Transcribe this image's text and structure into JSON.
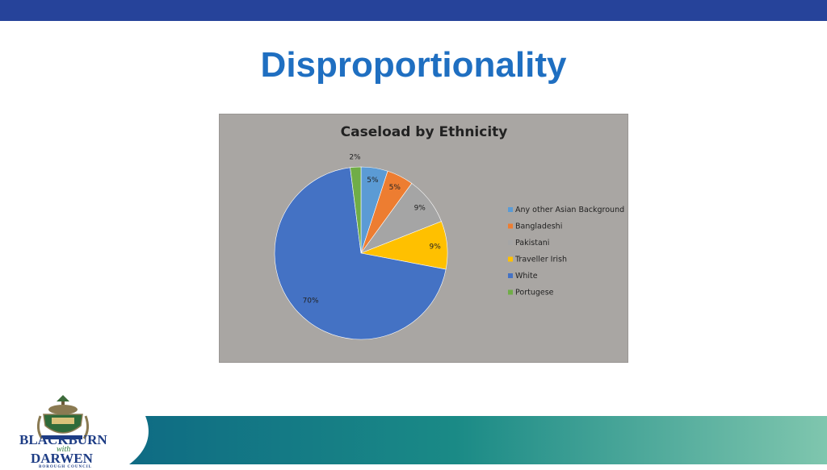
{
  "slide": {
    "title": "Disproportionality"
  },
  "logo": {
    "line1": "BLACKBURN",
    "line2": "with",
    "line3": "DARWEN",
    "line4": "BOROUGH COUNCIL"
  },
  "colors": {
    "top_bar": "#26439a",
    "title": "#1f6fc1",
    "chart_background": "#a9a6a3"
  },
  "chart_data": {
    "type": "pie",
    "title": "Caseload by Ethnicity",
    "legend_position": "right",
    "slices": [
      {
        "label": "Any other Asian Background",
        "value": 5,
        "display": "5%",
        "color": "#5b9bd5"
      },
      {
        "label": "Bangladeshi",
        "value": 5,
        "display": "5%",
        "color": "#ed7d31"
      },
      {
        "label": "Pakistani",
        "value": 9,
        "display": "9%",
        "color": "#a5a5a5"
      },
      {
        "label": "Traveller Irish",
        "value": 9,
        "display": "9%",
        "color": "#ffc000"
      },
      {
        "label": "White",
        "value": 70,
        "display": "70%",
        "color": "#4472c4"
      },
      {
        "label": "Portugese",
        "value": 2,
        "display": "2%",
        "color": "#70ad47"
      }
    ]
  }
}
